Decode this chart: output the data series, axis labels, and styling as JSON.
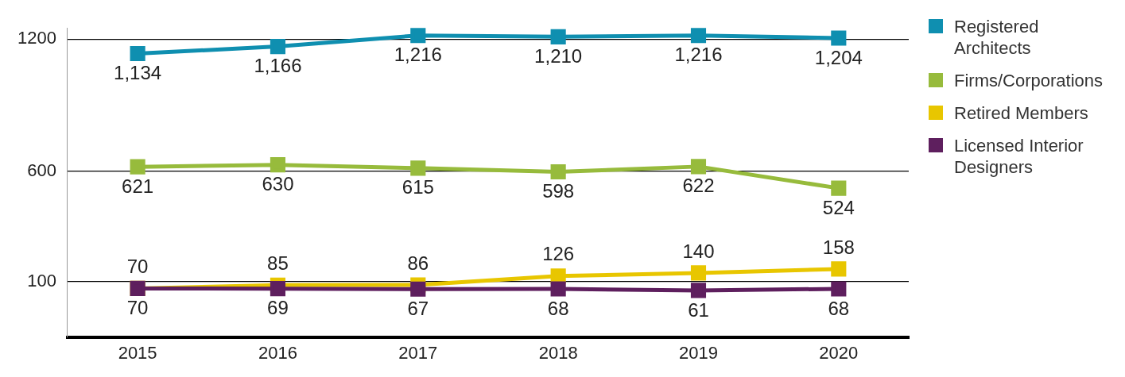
{
  "chart_data": {
    "type": "line",
    "categories": [
      "2015",
      "2016",
      "2017",
      "2018",
      "2019",
      "2020"
    ],
    "series": [
      {
        "name": "Registered Architects",
        "color": "#0f8fb0",
        "values": [
          1134,
          1166,
          1216,
          1210,
          1216,
          1204
        ],
        "value_labels": [
          "1,134",
          "1,166",
          "1,216",
          "1,210",
          "1,216",
          "1,204"
        ]
      },
      {
        "name": "Firms/Corporations",
        "color": "#97bb3c",
        "values": [
          621,
          630,
          615,
          598,
          622,
          524
        ],
        "value_labels": [
          "621",
          "630",
          "615",
          "598",
          "622",
          "524"
        ]
      },
      {
        "name": "Retired Members",
        "color": "#e8c600",
        "values": [
          70,
          85,
          86,
          126,
          140,
          158
        ],
        "value_labels": [
          "70",
          "85",
          "86",
          "126",
          "140",
          "158"
        ]
      },
      {
        "name": "Licensed Interior Designers",
        "color": "#5e1f5e",
        "values": [
          70,
          69,
          67,
          68,
          61,
          68
        ],
        "value_labels": [
          "70",
          "69",
          "67",
          "68",
          "61",
          "68"
        ]
      }
    ],
    "ylim": [
      -150,
      1250
    ],
    "yticks": [
      100,
      600,
      1200
    ],
    "grid": "y",
    "legend": "right",
    "marker": "square",
    "line_style": "solid"
  }
}
